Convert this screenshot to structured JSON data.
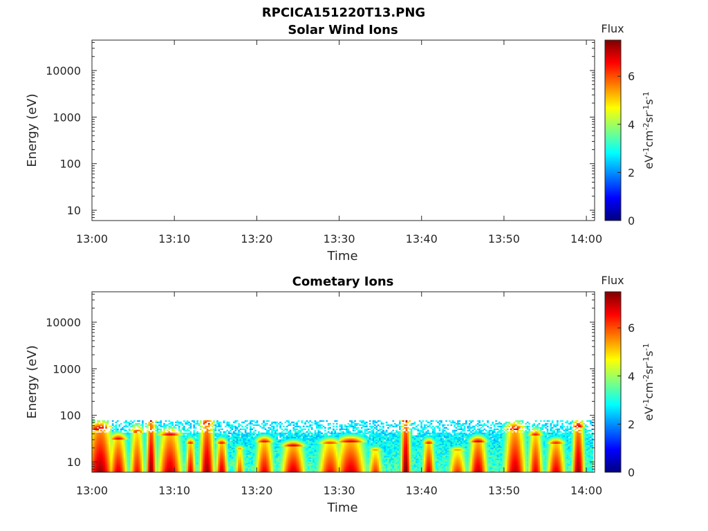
{
  "figure": {
    "title_line1": "RPCICA151220T13.PNG"
  },
  "colormap": [
    "#00007f",
    "#0000ff",
    "#007fff",
    "#00ffff",
    "#7fff7f",
    "#ffff00",
    "#ff7f00",
    "#ff0000",
    "#7f0000"
  ],
  "chart_data": [
    {
      "type": "heatmap",
      "title": "Solar Wind Ions",
      "xlabel": "Time",
      "ylabel": "Energy (eV)",
      "x_ticks": [
        "13:00",
        "13:10",
        "13:20",
        "13:30",
        "13:40",
        "13:50",
        "14:00"
      ],
      "x_range": [
        "13:00",
        "14:01"
      ],
      "y_scale": "log",
      "y_ticks": [
        "10",
        "100",
        "1000",
        "10000"
      ],
      "y_range": [
        6,
        45000
      ],
      "colorbar": {
        "title": "Flux",
        "label": "eV-1cm-2sr-1s-1",
        "ticks": [
          "0",
          "2",
          "4",
          "6"
        ],
        "range": [
          0,
          7.5
        ]
      },
      "data_present": false,
      "bursts": []
    },
    {
      "type": "heatmap",
      "title": "Cometary Ions",
      "xlabel": "Time",
      "ylabel": "Energy (eV)",
      "x_ticks": [
        "13:00",
        "13:10",
        "13:20",
        "13:30",
        "13:40",
        "13:50",
        "14:00"
      ],
      "x_range": [
        "13:00",
        "14:01"
      ],
      "y_scale": "log",
      "y_ticks": [
        "10",
        "100",
        "1000",
        "10000"
      ],
      "y_range": [
        6,
        45000
      ],
      "colorbar": {
        "title": "Flux",
        "label": "eV-1cm-2sr-1s-1",
        "ticks": [
          "0",
          "2",
          "4",
          "6"
        ],
        "range": [
          0,
          7.5
        ]
      },
      "data_present": true,
      "max_energy_eV": 80,
      "bursts": [
        {
          "time_min": 1.0,
          "width_min": 2.2,
          "peak_energy_eV": 40,
          "peak_flux": 7.3
        },
        {
          "time_min": 3.2,
          "width_min": 1.5,
          "peak_energy_eV": 25,
          "peak_flux": 6.8
        },
        {
          "time_min": 5.5,
          "width_min": 1.2,
          "peak_energy_eV": 35,
          "peak_flux": 6.5
        },
        {
          "time_min": 7.2,
          "width_min": 0.8,
          "peak_energy_eV": 60,
          "peak_flux": 7.4
        },
        {
          "time_min": 9.5,
          "width_min": 2.0,
          "peak_energy_eV": 30,
          "peak_flux": 7.0
        },
        {
          "time_min": 12.0,
          "width_min": 0.8,
          "peak_energy_eV": 20,
          "peak_flux": 6.8
        },
        {
          "time_min": 14.0,
          "width_min": 1.2,
          "peak_energy_eV": 50,
          "peak_flux": 7.3
        },
        {
          "time_min": 15.8,
          "width_min": 1.0,
          "peak_energy_eV": 20,
          "peak_flux": 6.9
        },
        {
          "time_min": 18.0,
          "width_min": 0.8,
          "peak_energy_eV": 15,
          "peak_flux": 6.0
        },
        {
          "time_min": 21.0,
          "width_min": 1.5,
          "peak_energy_eV": 22,
          "peak_flux": 6.7
        },
        {
          "time_min": 24.5,
          "width_min": 2.0,
          "peak_energy_eV": 18,
          "peak_flux": 6.9
        },
        {
          "time_min": 29.0,
          "width_min": 2.0,
          "peak_energy_eV": 20,
          "peak_flux": 6.5
        },
        {
          "time_min": 31.5,
          "width_min": 2.5,
          "peak_energy_eV": 22,
          "peak_flux": 6.9
        },
        {
          "time_min": 34.5,
          "width_min": 1.2,
          "peak_energy_eV": 14,
          "peak_flux": 6.2
        },
        {
          "time_min": 38.2,
          "width_min": 0.8,
          "peak_energy_eV": 60,
          "peak_flux": 7.5
        },
        {
          "time_min": 41.0,
          "width_min": 1.0,
          "peak_energy_eV": 20,
          "peak_flux": 6.8
        },
        {
          "time_min": 44.5,
          "width_min": 1.5,
          "peak_energy_eV": 14,
          "peak_flux": 6.2
        },
        {
          "time_min": 47.0,
          "width_min": 1.5,
          "peak_energy_eV": 22,
          "peak_flux": 7.0
        },
        {
          "time_min": 51.5,
          "width_min": 1.8,
          "peak_energy_eV": 40,
          "peak_flux": 7.0
        },
        {
          "time_min": 54.0,
          "width_min": 1.2,
          "peak_energy_eV": 30,
          "peak_flux": 6.7
        },
        {
          "time_min": 56.5,
          "width_min": 1.5,
          "peak_energy_eV": 20,
          "peak_flux": 6.8
        },
        {
          "time_min": 59.2,
          "width_min": 1.0,
          "peak_energy_eV": 45,
          "peak_flux": 7.3
        }
      ]
    }
  ]
}
